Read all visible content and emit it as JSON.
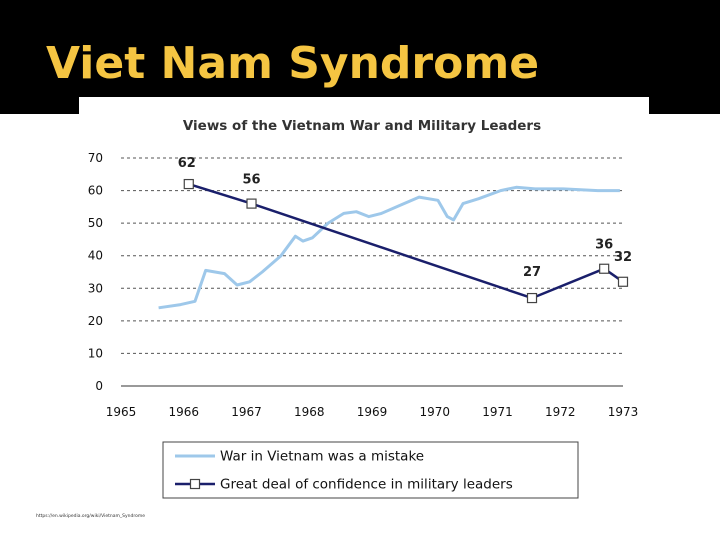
{
  "slide": {
    "title": "Viet Nam Syndrome",
    "title_color": "#f5c542",
    "background_color": "#000000",
    "source": "https://en.wikipedia.org/wiki/Vietnam_Syndrome"
  },
  "chart_data": {
    "type": "line",
    "title": "Views of the Vietnam War and Military Leaders",
    "xlabel": "",
    "ylabel": "",
    "xlim": [
      1965,
      1973
    ],
    "ylim": [
      0,
      70
    ],
    "x_ticks": [
      "1965",
      "1966",
      "1967",
      "1968",
      "1969",
      "1970",
      "1971",
      "1972",
      "1973"
    ],
    "y_ticks": [
      "0",
      "10",
      "20",
      "30",
      "40",
      "50",
      "60",
      "70"
    ],
    "grid": "horizontal dashed",
    "legend_position": "bottom",
    "series": [
      {
        "name": "War in Vietnam was a mistake",
        "color": "#9ec8ea",
        "marker": "none",
        "points": [
          [
            1965.6,
            24
          ],
          [
            1965.95,
            25
          ],
          [
            1966.18,
            26
          ],
          [
            1966.35,
            35.5
          ],
          [
            1966.65,
            34.5
          ],
          [
            1966.85,
            31
          ],
          [
            1967.05,
            32
          ],
          [
            1967.25,
            35
          ],
          [
            1967.55,
            40
          ],
          [
            1967.78,
            46
          ],
          [
            1967.9,
            44.5
          ],
          [
            1968.05,
            45.5
          ],
          [
            1968.3,
            50
          ],
          [
            1968.55,
            53
          ],
          [
            1968.75,
            53.5
          ],
          [
            1968.95,
            52
          ],
          [
            1969.15,
            53
          ],
          [
            1969.45,
            55.5
          ],
          [
            1969.75,
            58
          ],
          [
            1970.05,
            57
          ],
          [
            1970.2,
            52
          ],
          [
            1970.3,
            51
          ],
          [
            1970.45,
            56
          ],
          [
            1970.7,
            57.5
          ],
          [
            1971.05,
            60
          ],
          [
            1971.3,
            61
          ],
          [
            1971.6,
            60.5
          ],
          [
            1972.05,
            60.5
          ],
          [
            1972.6,
            60
          ],
          [
            1972.95,
            60
          ]
        ]
      },
      {
        "name": "Great deal of confidence in military leaders",
        "color": "#1a1f6b",
        "marker": "square",
        "points": [
          [
            1966.08,
            62
          ],
          [
            1967.08,
            56
          ],
          [
            1971.55,
            27
          ],
          [
            1972.7,
            36
          ],
          [
            1973.0,
            32
          ]
        ],
        "labels": [
          {
            "text": "62",
            "x": 1966.08,
            "y": 62
          },
          {
            "text": "56",
            "x": 1967.08,
            "y": 56
          },
          {
            "text": "27",
            "x": 1971.55,
            "y": 27
          },
          {
            "text": "36",
            "x": 1972.7,
            "y": 36
          },
          {
            "text": "32",
            "x": 1973.0,
            "y": 32
          }
        ]
      }
    ]
  }
}
